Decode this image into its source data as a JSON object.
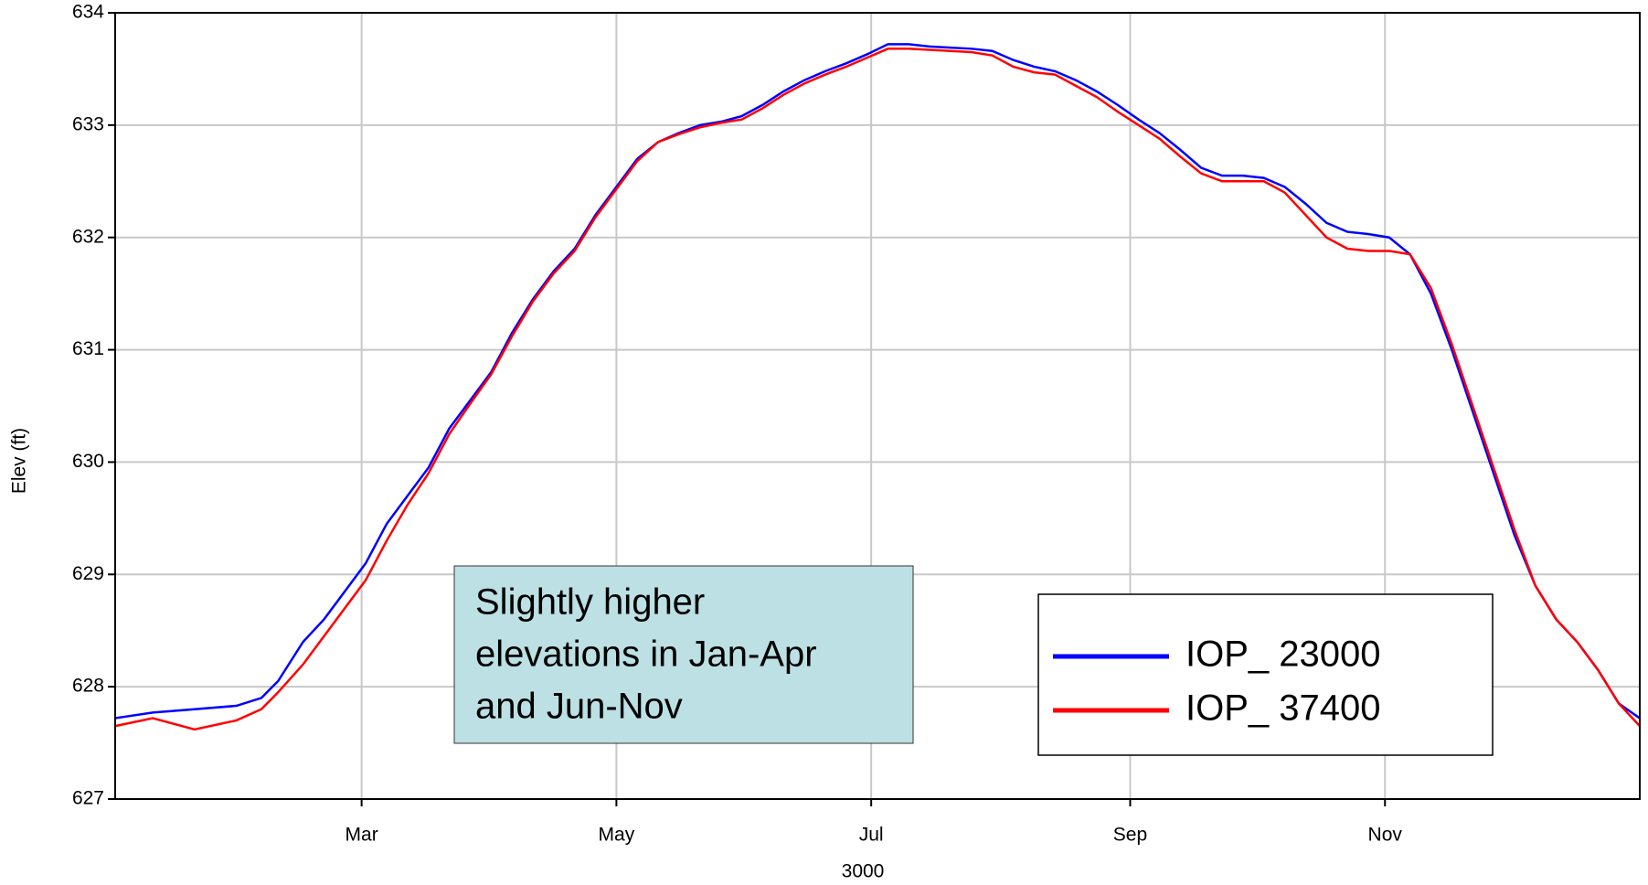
{
  "chart_data": {
    "type": "line",
    "xlabel": "3000",
    "ylabel": "Elev (ft)",
    "x": [
      1,
      10,
      20,
      30,
      36,
      40,
      46,
      51,
      56,
      61,
      66,
      71,
      76,
      81,
      86,
      91,
      96,
      101,
      106,
      111,
      116,
      121,
      126,
      131,
      136,
      141,
      146,
      151,
      156,
      161,
      166,
      171,
      176,
      181,
      186,
      191,
      196,
      201,
      206,
      211,
      216,
      221,
      226,
      231,
      236,
      241,
      246,
      251,
      256,
      261,
      266,
      271,
      276,
      281,
      286,
      291,
      296,
      301,
      306,
      311,
      316,
      321,
      326,
      331,
      336,
      341,
      346,
      351,
      356,
      361,
      366
    ],
    "series": [
      {
        "name": "IOP_ 23000",
        "color": "#0000ff",
        "values": [
          627.72,
          627.77,
          627.8,
          627.83,
          627.9,
          628.05,
          628.4,
          628.6,
          628.85,
          629.1,
          629.45,
          629.7,
          629.95,
          630.3,
          630.55,
          630.8,
          631.15,
          631.45,
          631.7,
          631.9,
          632.2,
          632.45,
          632.7,
          632.85,
          632.93,
          633.0,
          633.03,
          633.08,
          633.18,
          633.3,
          633.4,
          633.48,
          633.55,
          633.63,
          633.72,
          633.72,
          633.7,
          633.69,
          633.68,
          633.66,
          633.58,
          633.52,
          633.48,
          633.4,
          633.3,
          633.18,
          633.05,
          632.93,
          632.78,
          632.62,
          632.55,
          632.55,
          632.53,
          632.45,
          632.3,
          632.13,
          632.05,
          632.03,
          632.0,
          631.85,
          631.5,
          631.0,
          630.45,
          629.9,
          629.35,
          628.9,
          628.6,
          628.4,
          628.15,
          627.85,
          627.72
        ]
      },
      {
        "name": "IOP_ 37400",
        "color": "#ff0000",
        "values": [
          627.65,
          627.72,
          627.62,
          627.7,
          627.8,
          627.95,
          628.2,
          628.45,
          628.7,
          628.95,
          629.3,
          629.62,
          629.9,
          630.25,
          630.52,
          630.78,
          631.12,
          631.43,
          631.68,
          631.88,
          632.18,
          632.43,
          632.68,
          632.85,
          632.92,
          632.98,
          633.02,
          633.05,
          633.15,
          633.27,
          633.37,
          633.45,
          633.52,
          633.6,
          633.68,
          633.68,
          633.67,
          633.66,
          633.65,
          633.62,
          633.52,
          633.47,
          633.45,
          633.35,
          633.25,
          633.12,
          633.0,
          632.88,
          632.72,
          632.57,
          632.5,
          632.5,
          632.5,
          632.4,
          632.2,
          632.0,
          631.9,
          631.88,
          631.88,
          631.85,
          631.55,
          631.05,
          630.5,
          629.95,
          629.4,
          628.9,
          628.6,
          628.4,
          628.15,
          627.85,
          627.65
        ]
      }
    ],
    "xlim": [
      1,
      366
    ],
    "xticks": [
      {
        "value": 60,
        "label": "Mar"
      },
      {
        "value": 121,
        "label": "May"
      },
      {
        "value": 182,
        "label": "Jul"
      },
      {
        "value": 244,
        "label": "Sep"
      },
      {
        "value": 305,
        "label": "Nov"
      }
    ],
    "ylim": [
      627,
      634
    ],
    "yticks": [
      627,
      628,
      629,
      630,
      631,
      632,
      633,
      634
    ],
    "grid": true,
    "legend": "lower right",
    "annotation": [
      "Slightly higher",
      "elevations in Jan-Apr",
      "and Jun-Nov"
    ]
  }
}
